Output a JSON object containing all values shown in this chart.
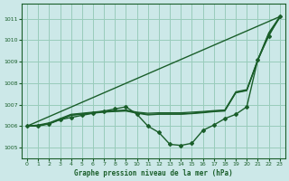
{
  "title": "Graphe pression niveau de la mer (hPa)",
  "bg_color": "#cce8e8",
  "grid_color": "#99ccbb",
  "line_color": "#1a5e2a",
  "xlim": [
    -0.5,
    23.5
  ],
  "ylim": [
    1004.5,
    1011.7
  ],
  "yticks": [
    1005,
    1006,
    1007,
    1008,
    1009,
    1010,
    1011
  ],
  "xticks": [
    0,
    1,
    2,
    3,
    4,
    5,
    6,
    7,
    8,
    9,
    10,
    11,
    12,
    13,
    14,
    15,
    16,
    17,
    18,
    19,
    20,
    21,
    22,
    23
  ],
  "series": [
    {
      "x": [
        0,
        23
      ],
      "y": [
        1006.0,
        1011.1
      ],
      "marker": null,
      "markersize": 0,
      "linewidth": 1.0
    },
    {
      "x": [
        0,
        1,
        2,
        3,
        4,
        5,
        6,
        7,
        8,
        9,
        10,
        11,
        12,
        13,
        14,
        15,
        16,
        17,
        18,
        19,
        20,
        21,
        22,
        23
      ],
      "y": [
        1006.0,
        1006.0,
        1006.1,
        1006.3,
        1006.4,
        1006.5,
        1006.6,
        1006.7,
        1006.8,
        1006.9,
        1006.55,
        1006.0,
        1005.7,
        1005.15,
        1005.1,
        1005.2,
        1005.8,
        1006.05,
        1006.35,
        1006.55,
        1006.9,
        1009.1,
        1010.2,
        1011.1
      ],
      "marker": "D",
      "markersize": 2.0,
      "linewidth": 1.0
    },
    {
      "x": [
        0,
        1,
        2,
        3,
        4,
        5,
        6,
        7,
        8,
        9,
        10,
        11,
        12,
        13,
        14,
        15,
        16,
        17,
        18,
        19,
        20,
        21,
        22,
        23
      ],
      "y": [
        1006.0,
        1006.05,
        1006.15,
        1006.35,
        1006.55,
        1006.6,
        1006.65,
        1006.7,
        1006.72,
        1006.75,
        1006.65,
        1006.6,
        1006.62,
        1006.62,
        1006.62,
        1006.65,
        1006.68,
        1006.72,
        1006.75,
        1007.6,
        1007.7,
        1009.1,
        1010.35,
        1011.1
      ],
      "marker": null,
      "markersize": 0,
      "linewidth": 0.9
    },
    {
      "x": [
        0,
        1,
        2,
        3,
        4,
        5,
        6,
        7,
        8,
        9,
        10,
        11,
        12,
        13,
        14,
        15,
        16,
        17,
        18,
        19,
        20,
        21,
        22,
        23
      ],
      "y": [
        1006.0,
        1006.02,
        1006.12,
        1006.3,
        1006.5,
        1006.55,
        1006.6,
        1006.65,
        1006.68,
        1006.7,
        1006.6,
        1006.52,
        1006.55,
        1006.55,
        1006.55,
        1006.58,
        1006.62,
        1006.67,
        1006.7,
        1007.55,
        1007.65,
        1009.05,
        1010.25,
        1011.05
      ],
      "marker": null,
      "markersize": 0,
      "linewidth": 0.9
    },
    {
      "x": [
        0,
        1,
        2,
        3,
        4,
        5,
        6,
        7,
        8,
        9,
        10,
        11,
        12,
        13,
        14,
        15,
        16,
        17,
        18,
        19,
        20,
        21,
        22,
        23
      ],
      "y": [
        1006.0,
        1006.02,
        1006.12,
        1006.32,
        1006.52,
        1006.57,
        1006.62,
        1006.67,
        1006.7,
        1006.72,
        1006.62,
        1006.55,
        1006.57,
        1006.57,
        1006.57,
        1006.6,
        1006.65,
        1006.7,
        1006.73,
        1007.57,
        1007.67,
        1009.08,
        1010.3,
        1011.07
      ],
      "marker": null,
      "markersize": 0,
      "linewidth": 0.9
    }
  ]
}
